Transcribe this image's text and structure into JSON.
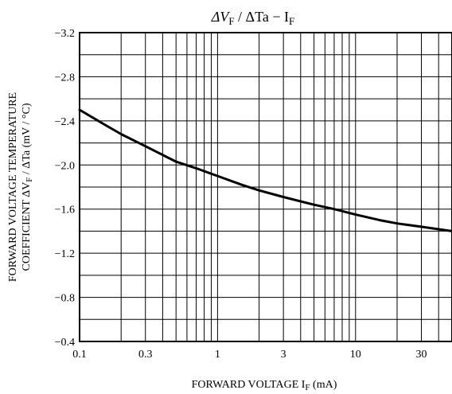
{
  "chart_data": {
    "type": "line",
    "title": {
      "part1": "ΔV",
      "part1_sub": "F",
      "part2": " / ΔTa  −  I",
      "part2_sub": "F"
    },
    "xlabel": {
      "main": "FORWARD VOLTAGE  I",
      "sub": "F",
      "unit": "  (mA)"
    },
    "ylabel": {
      "line1": "FORWARD VOLTAGE TEMPERATURE",
      "line2_main": "COEFFICIENT   ΔV",
      "line2_sub": "F",
      "line2_tail": " / ΔTa   (mV / °C)"
    },
    "x_scale": "log",
    "xlim": [
      0.1,
      50
    ],
    "ylim": [
      -3.2,
      -0.4
    ],
    "y_reversed": true,
    "grid": true,
    "x_ticks": [
      {
        "value": 0.1,
        "label": "0.1"
      },
      {
        "value": 0.3,
        "label": "0.3"
      },
      {
        "value": 1,
        "label": "1"
      },
      {
        "value": 3,
        "label": "3"
      },
      {
        "value": 10,
        "label": "10"
      },
      {
        "value": 30,
        "label": "30"
      }
    ],
    "y_ticks": [
      {
        "value": -3.2,
        "label": "−3.2"
      },
      {
        "value": -2.8,
        "label": "−2.8"
      },
      {
        "value": -2.4,
        "label": "−2.4"
      },
      {
        "value": -2.0,
        "label": "−2.0"
      },
      {
        "value": -1.6,
        "label": "−1.6"
      },
      {
        "value": -1.2,
        "label": "−1.2"
      },
      {
        "value": -0.8,
        "label": "−0.8"
      },
      {
        "value": -0.4,
        "label": "−0.4"
      }
    ],
    "series": [
      {
        "x": [
          0.1,
          0.15,
          0.2,
          0.3,
          0.5,
          0.7,
          1,
          1.5,
          2,
          3,
          5,
          7,
          10,
          15,
          20,
          30,
          50
        ],
        "y": [
          -2.5,
          -2.37,
          -2.28,
          -2.17,
          -2.03,
          -1.97,
          -1.9,
          -1.82,
          -1.77,
          -1.71,
          -1.64,
          -1.6,
          -1.55,
          -1.5,
          -1.47,
          -1.44,
          -1.4
        ]
      }
    ]
  }
}
